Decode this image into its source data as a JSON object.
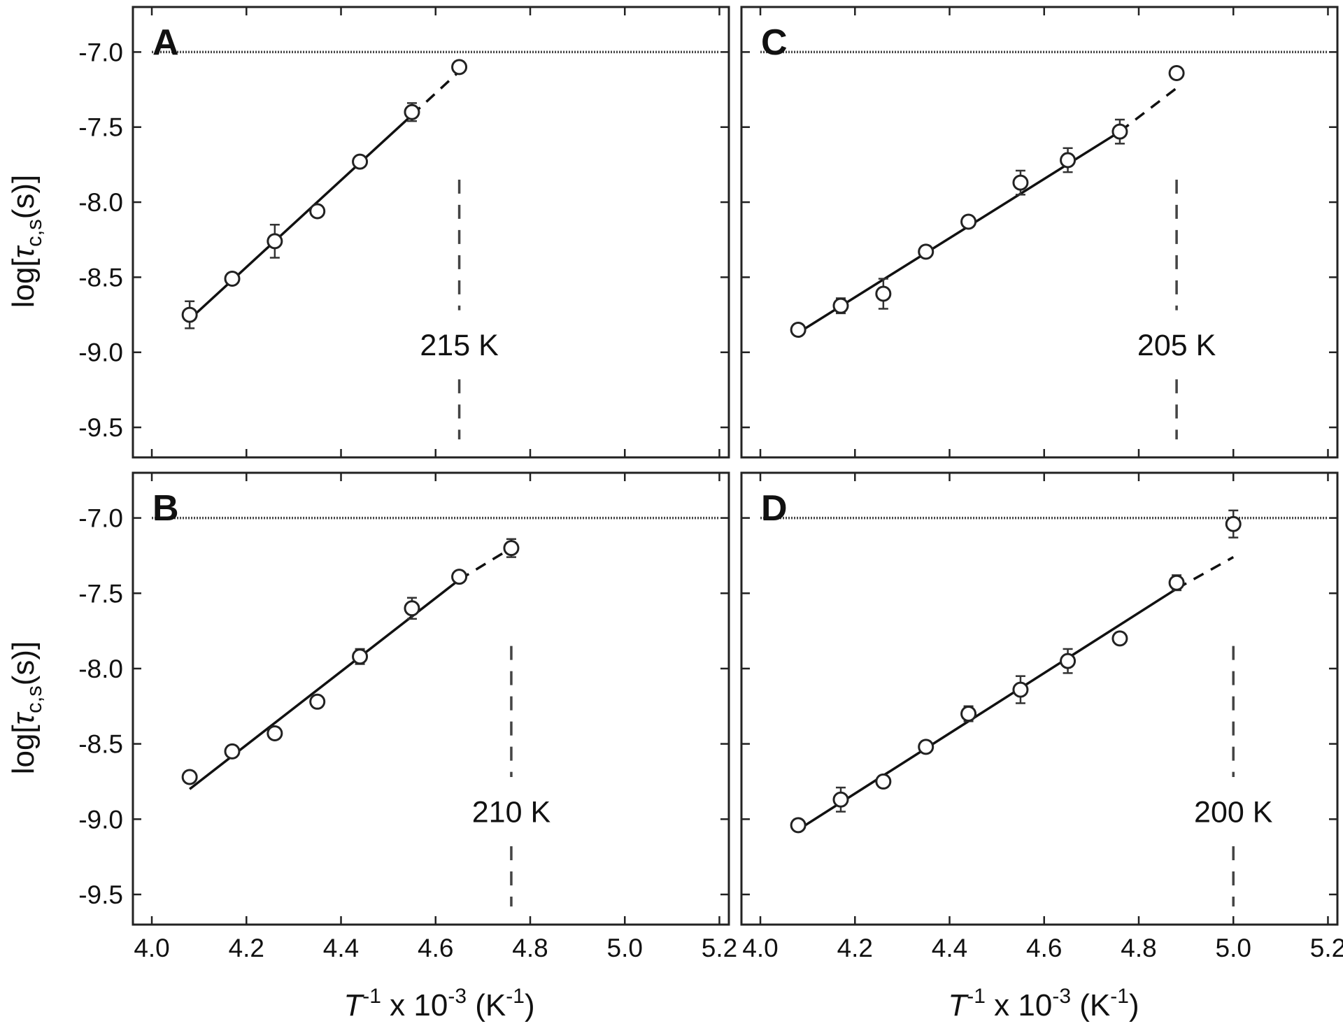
{
  "chart_data": [
    {
      "type": "scatter",
      "panel": "A",
      "annotation": "215 K",
      "reference_line_y": -7.0,
      "marker_line_x": 4.65,
      "x": [
        4.08,
        4.17,
        4.26,
        4.35,
        4.44,
        4.55,
        4.65
      ],
      "y": [
        -8.75,
        -8.51,
        -8.26,
        -8.06,
        -7.73,
        -7.4,
        -7.1
      ],
      "yerr": [
        0.09,
        0.03,
        0.11,
        0.03,
        0.03,
        0.06,
        0.03
      ],
      "fit": {
        "x": [
          4.08,
          4.55
        ],
        "y": [
          -8.78,
          -7.42
        ]
      },
      "extrapolation": {
        "x": [
          4.55,
          4.66
        ],
        "y": [
          -7.42,
          -7.1
        ]
      },
      "xlim": [
        3.96,
        5.22
      ],
      "ylim": [
        -9.7,
        -6.7
      ]
    },
    {
      "type": "scatter",
      "panel": "B",
      "annotation": "210 K",
      "reference_line_y": -7.0,
      "marker_line_x": 4.76,
      "x": [
        4.08,
        4.17,
        4.26,
        4.35,
        4.44,
        4.55,
        4.65,
        4.76
      ],
      "y": [
        -8.72,
        -8.55,
        -8.43,
        -8.22,
        -7.92,
        -7.6,
        -7.39,
        -7.2
      ],
      "yerr": [
        0.03,
        0.03,
        0.03,
        0.03,
        0.05,
        0.07,
        0.03,
        0.06
      ],
      "fit": {
        "x": [
          4.08,
          4.65
        ],
        "y": [
          -8.8,
          -7.41
        ]
      },
      "extrapolation": {
        "x": [
          4.65,
          4.76
        ],
        "y": [
          -7.41,
          -7.2
        ]
      },
      "xlim": [
        3.96,
        5.22
      ],
      "ylim": [
        -9.7,
        -6.7
      ]
    },
    {
      "type": "scatter",
      "panel": "C",
      "annotation": "205 K",
      "reference_line_y": -7.0,
      "marker_line_x": 4.88,
      "x": [
        4.08,
        4.17,
        4.26,
        4.35,
        4.44,
        4.55,
        4.65,
        4.76,
        4.88
      ],
      "y": [
        -8.85,
        -8.69,
        -8.61,
        -8.33,
        -8.13,
        -7.87,
        -7.72,
        -7.53,
        -7.14
      ],
      "yerr": [
        0.03,
        0.05,
        0.1,
        0.03,
        0.03,
        0.08,
        0.08,
        0.08,
        0.03
      ],
      "fit": {
        "x": [
          4.08,
          4.76
        ],
        "y": [
          -8.87,
          -7.53
        ]
      },
      "extrapolation": {
        "x": [
          4.76,
          4.88
        ],
        "y": [
          -7.53,
          -7.24
        ]
      },
      "xlim": [
        3.96,
        5.22
      ],
      "ylim": [
        -9.7,
        -6.7
      ]
    },
    {
      "type": "scatter",
      "panel": "D",
      "annotation": "200 K",
      "reference_line_y": -7.0,
      "marker_line_x": 5.0,
      "x": [
        4.08,
        4.17,
        4.26,
        4.35,
        4.44,
        4.55,
        4.65,
        4.76,
        4.88,
        5.0
      ],
      "y": [
        -9.04,
        -8.87,
        -8.75,
        -8.52,
        -8.3,
        -8.14,
        -7.95,
        -7.8,
        -7.43,
        -7.04
      ],
      "yerr": [
        0.03,
        0.08,
        0.03,
        0.03,
        0.05,
        0.09,
        0.08,
        0.03,
        0.05,
        0.09
      ],
      "fit": {
        "x": [
          4.08,
          4.88
        ],
        "y": [
          -9.07,
          -7.47
        ]
      },
      "extrapolation": {
        "x": [
          4.88,
          5.0
        ],
        "y": [
          -7.47,
          -7.26
        ]
      },
      "xlim": [
        3.96,
        5.22
      ],
      "ylim": [
        -9.7,
        -6.7
      ]
    }
  ],
  "axes": {
    "x_ticks": [
      4.0,
      4.2,
      4.4,
      4.6,
      4.8,
      5.0,
      5.2
    ],
    "x_tick_labels": [
      "4.0",
      "4.2",
      "4.4",
      "4.6",
      "4.8",
      "5.0",
      "5.2"
    ],
    "y_ticks": [
      -7.0,
      -7.5,
      -8.0,
      -8.5,
      -9.0,
      -9.5
    ],
    "y_tick_labels": [
      "-7.0",
      "-7.5",
      "-8.0",
      "-8.5",
      "-9.0",
      "-9.5"
    ],
    "ylabel": {
      "main": "log[",
      "tau": "τ",
      "sub": "c,s",
      "tail": "(s)]"
    },
    "xlabel": {
      "T": "T",
      "exp1": "-1",
      "mid": " x 10",
      "exp2": "-3",
      "unit": "  (K",
      "exp3": "-1",
      "close": ")"
    }
  }
}
